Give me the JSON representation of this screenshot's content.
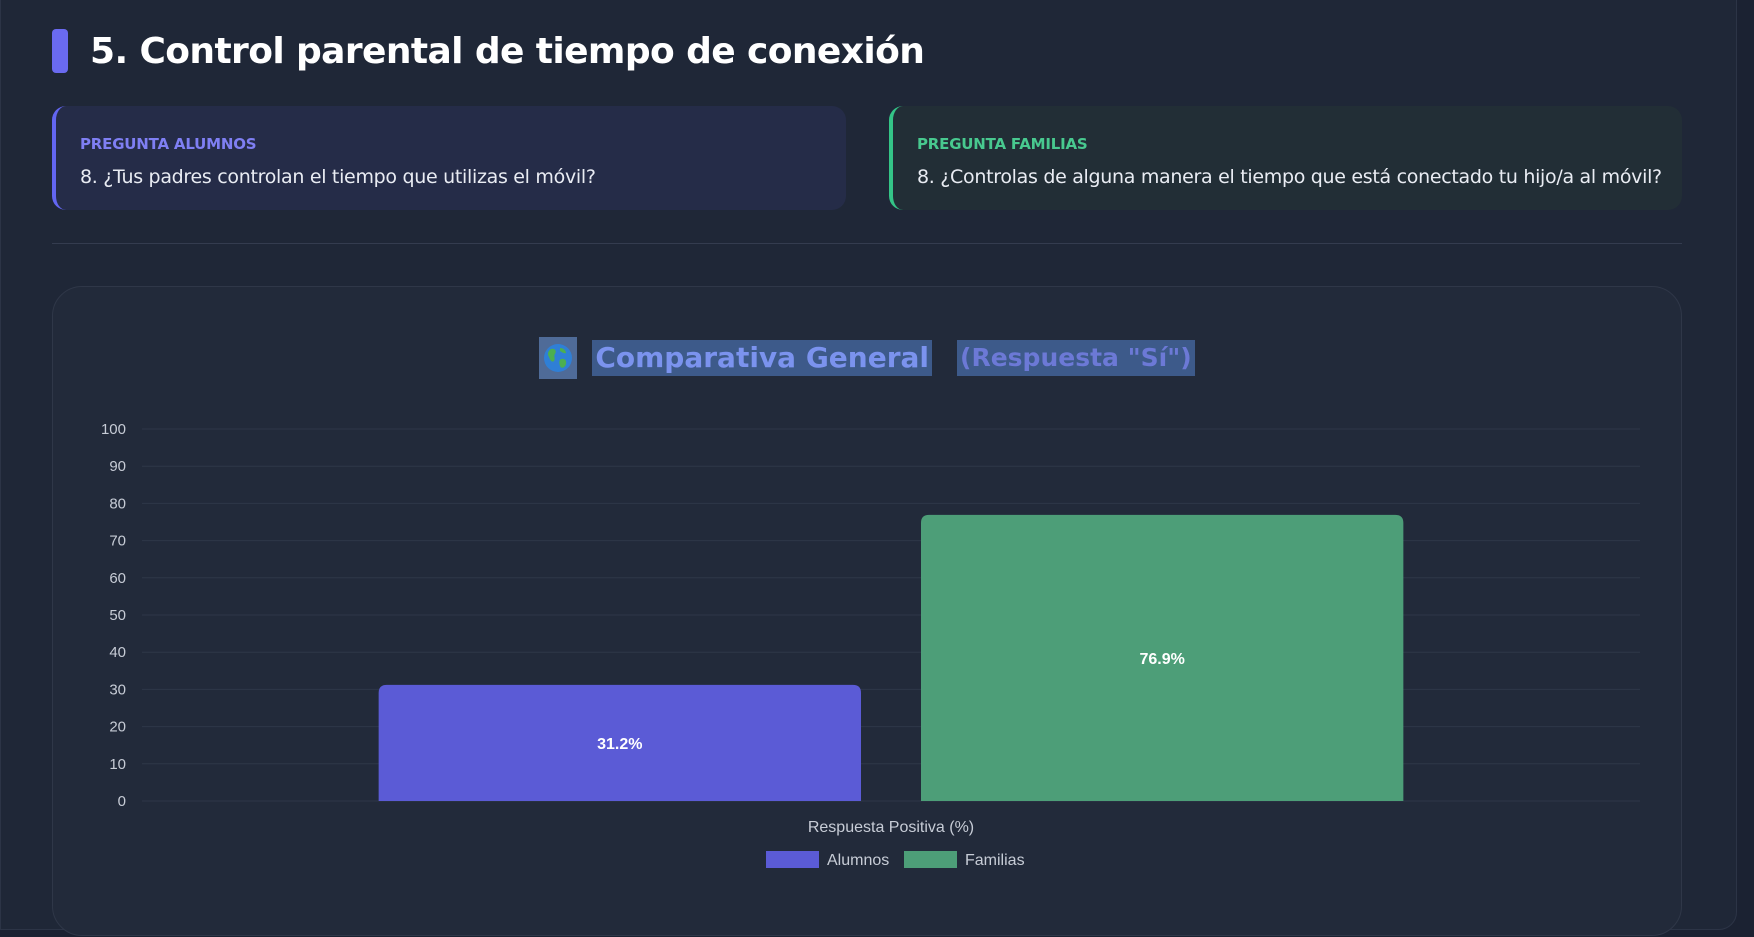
{
  "section": {
    "title": "5. Control parental de tiempo de conexión"
  },
  "questions": {
    "students": {
      "label": "PREGUNTA ALUMNOS",
      "text": "8. ¿Tus padres controlan el tiempo que utilizas el móvil?"
    },
    "families": {
      "label": "PREGUNTA FAMILIAS",
      "text": "8. ¿Controlas de alguna manera el tiempo que está conectado tu hijo/a al móvil?"
    }
  },
  "chart_card": {
    "icon": "globe-icon",
    "title": "Comparativa General",
    "subtitle": "(Respuesta \"Sí\")"
  },
  "colors": {
    "students": "#5b5bd6",
    "families": "#4d9e78",
    "accent": "#6366f1",
    "families_accent": "#34c487"
  },
  "chart_data": {
    "type": "bar",
    "title": "Comparativa General",
    "subtitle": "(Respuesta \"Sí\")",
    "categories": [
      "Respuesta Positiva (%)"
    ],
    "series": [
      {
        "name": "Alumnos",
        "values": [
          31.2
        ],
        "label": "31.2%"
      },
      {
        "name": "Familias",
        "values": [
          76.9
        ],
        "label": "76.9%"
      }
    ],
    "xlabel": "Respuesta Positiva (%)",
    "ylabel": "",
    "ylim": [
      0,
      100
    ],
    "yticks": [
      0,
      10,
      20,
      30,
      40,
      50,
      60,
      70,
      80,
      90,
      100
    ],
    "grid": true,
    "legend": "bottom-center"
  }
}
